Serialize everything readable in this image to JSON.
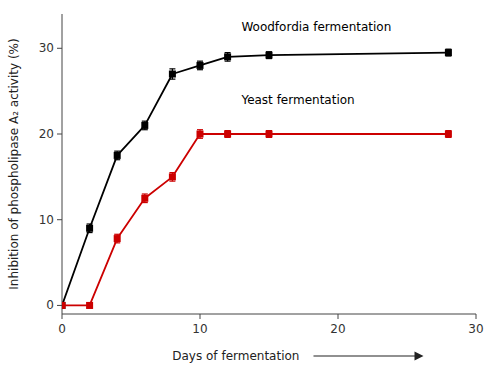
{
  "chart_data": {
    "type": "line",
    "x": [
      0,
      2,
      4,
      6,
      8,
      10,
      12,
      15,
      28
    ],
    "series": [
      {
        "color": "#000000",
        "marker": "square",
        "values": [
          0,
          9,
          17.5,
          21,
          27,
          28,
          29,
          29.2,
          29.5
        ],
        "errors": [
          0.3,
          0.5,
          0.5,
          0.5,
          0.6,
          0.5,
          0.5,
          0.4,
          0.4
        ]
      },
      {
        "color": "#cc0000",
        "marker": "square",
        "values": [
          0,
          0,
          7.8,
          12.5,
          15,
          20,
          20,
          20,
          20
        ],
        "errors": [
          0.3,
          0.3,
          0.5,
          0.5,
          0.5,
          0.5,
          0.4,
          0.4,
          0.4
        ]
      }
    ],
    "xlabel": "Days of fermentation",
    "ylabel": "Inhibition of phospholipase A₂ activity (%)",
    "xlim": [
      0,
      30
    ],
    "ylim": [
      -1,
      34
    ],
    "xticks": [
      0,
      10,
      20,
      30
    ],
    "yticks": [
      0,
      10,
      20,
      30
    ],
    "annotations": [
      {
        "text": "Woodfordia fermentation",
        "x": 13,
        "y": 32
      },
      {
        "text": "Yeast fermentation",
        "x": 13,
        "y": 23.5
      }
    ]
  }
}
